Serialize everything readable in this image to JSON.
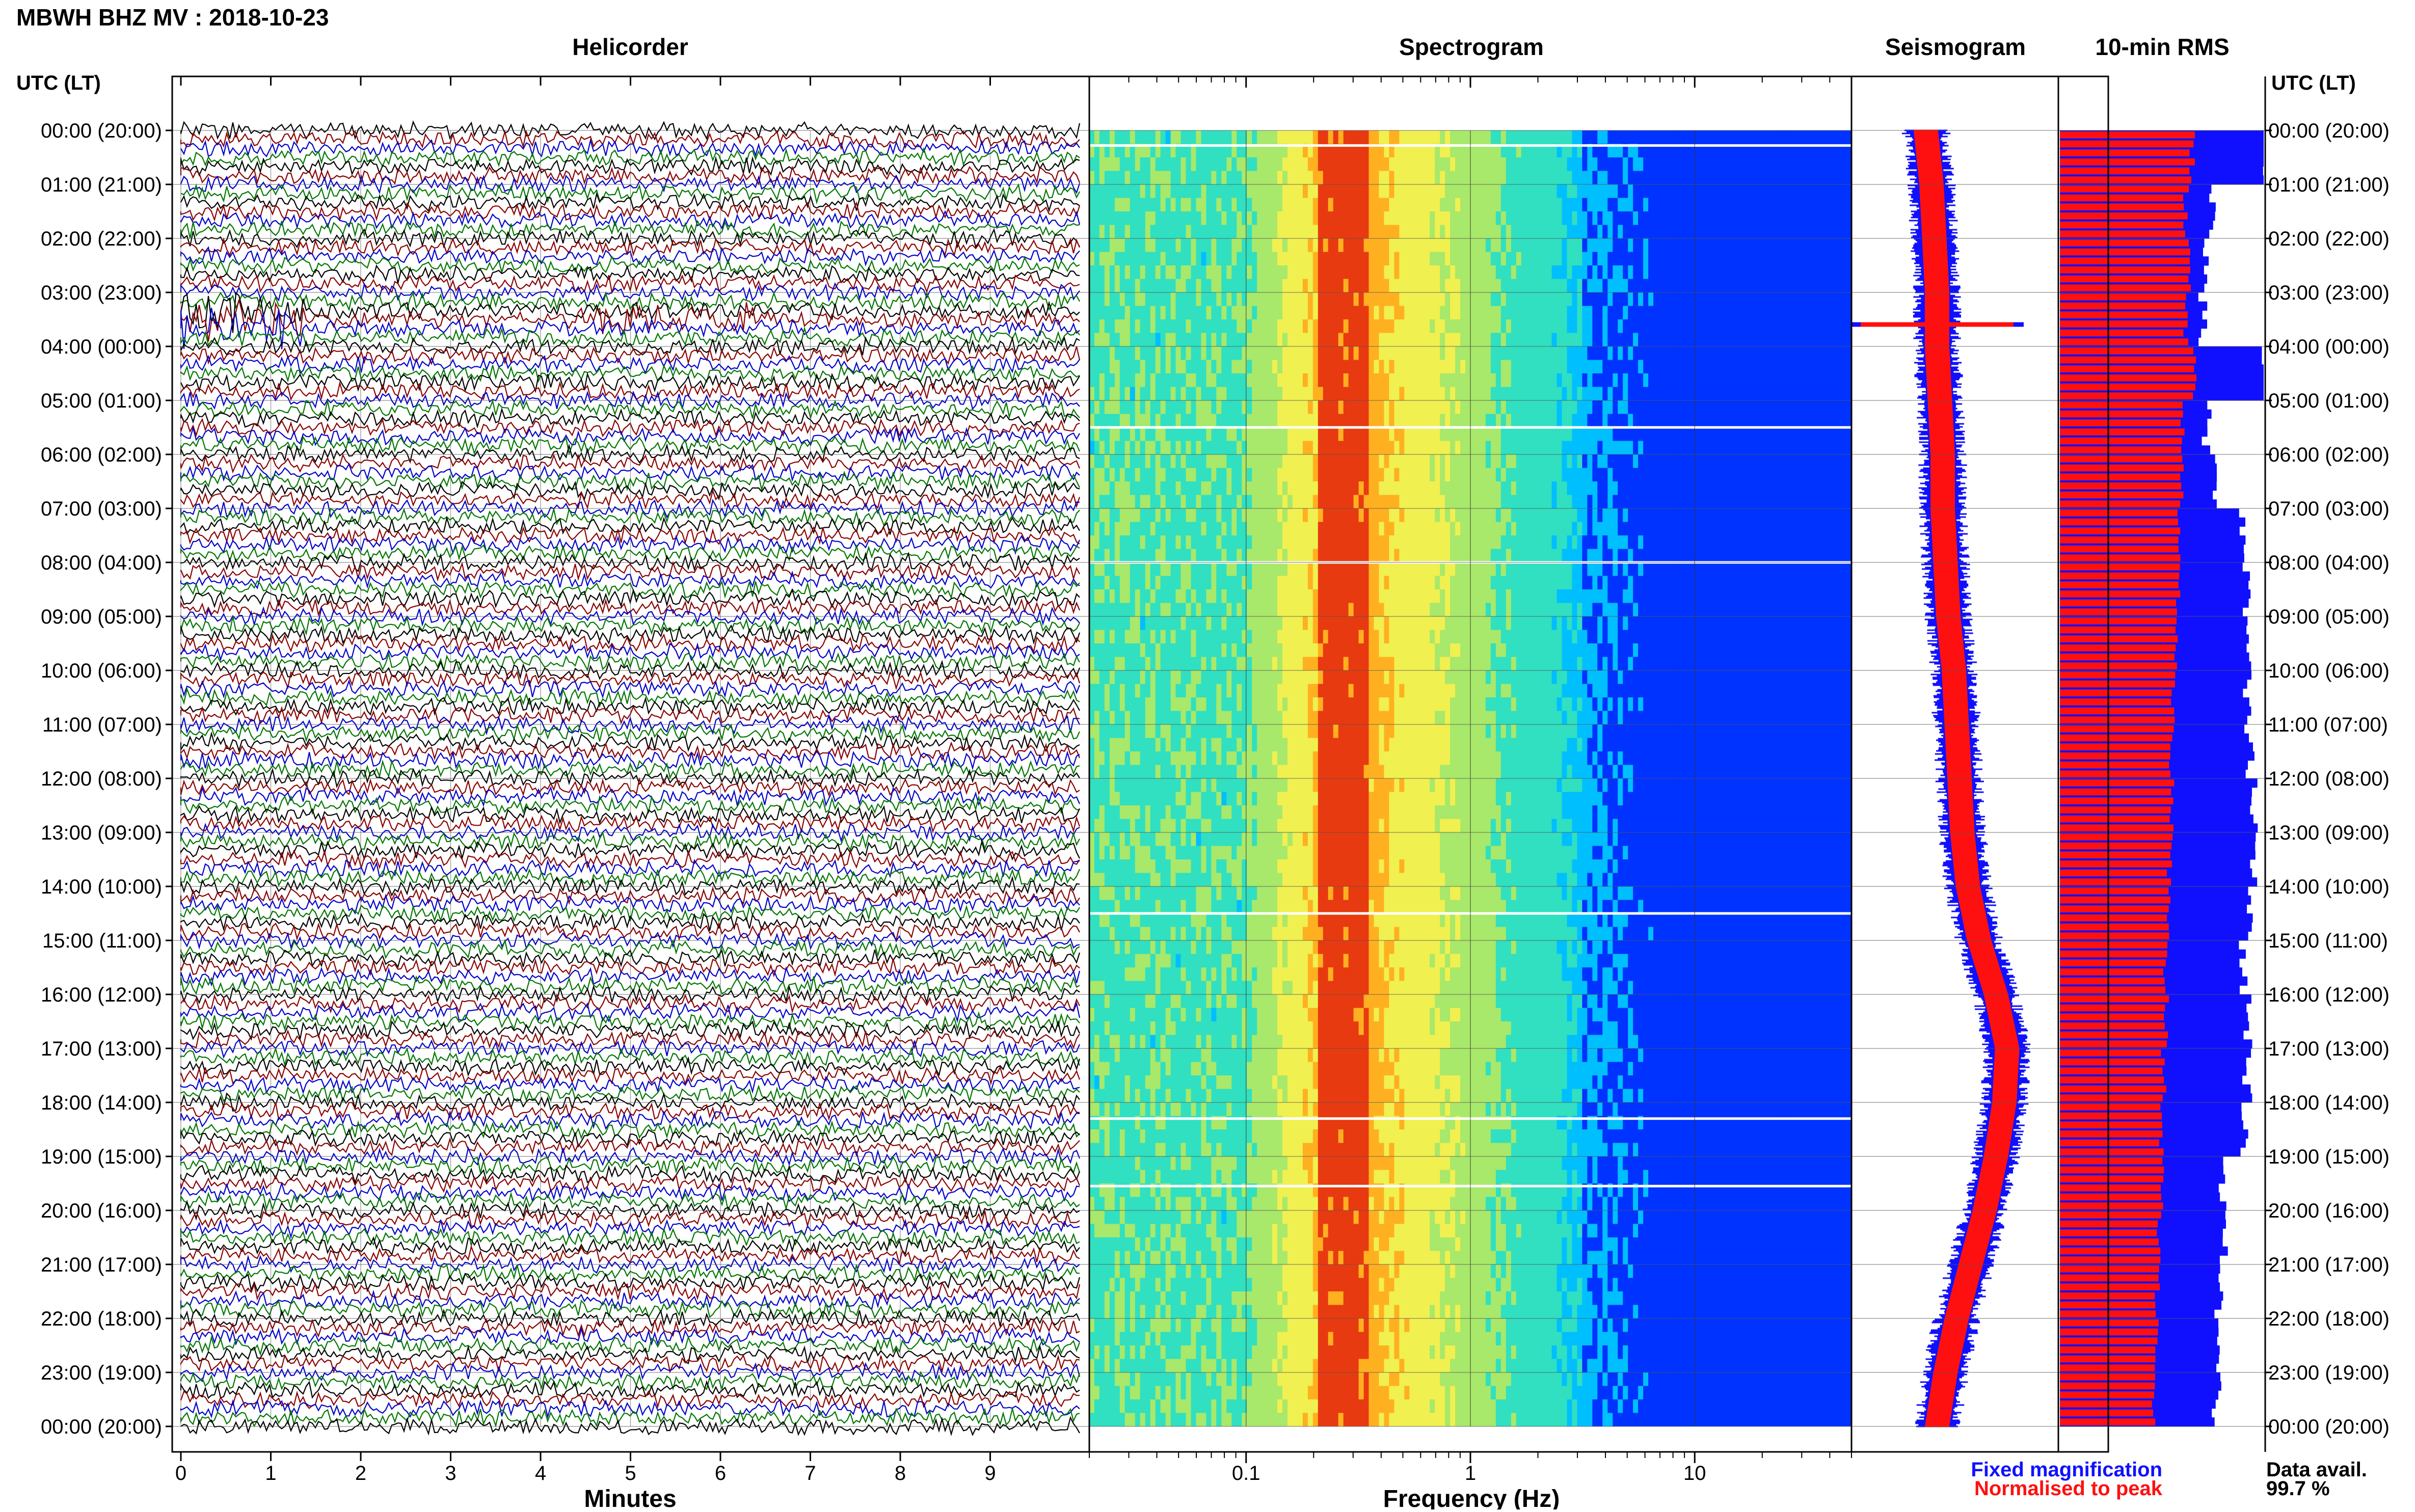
{
  "page": {
    "title": "MBWH BHZ MV : 2018-10-23",
    "utc_label_left": "UTC (LT)",
    "utc_label_right": "UTC (LT)"
  },
  "panels": {
    "helicorder": "Helicorder",
    "spectrogram": "Spectrogram",
    "seismogram": "Seismogram",
    "rms": "10-min RMS"
  },
  "legend": {
    "fixed": "Fixed magnification",
    "fixed_color": "#1010ff",
    "normalised": "Normalised to peak",
    "normalised_color": "#ff1010",
    "avail_label": "Data avail.",
    "avail_value": "99.7 %"
  },
  "chart_data": {
    "type": "heatmap",
    "time_labels": [
      "00:00 (20:00)",
      "01:00 (21:00)",
      "02:00 (22:00)",
      "03:00 (23:00)",
      "04:00 (00:00)",
      "05:00 (01:00)",
      "06:00 (02:00)",
      "07:00 (03:00)",
      "08:00 (04:00)",
      "09:00 (05:00)",
      "10:00 (06:00)",
      "11:00 (07:00)",
      "12:00 (08:00)",
      "13:00 (09:00)",
      "14:00 (10:00)",
      "15:00 (11:00)",
      "16:00 (12:00)",
      "17:00 (13:00)",
      "18:00 (14:00)",
      "19:00 (15:00)",
      "20:00 (16:00)",
      "21:00 (17:00)",
      "22:00 (18:00)",
      "23:00 (19:00)",
      "00:00 (20:00)"
    ],
    "helicorder": {
      "xlabel": "Minutes",
      "xticks": [
        "0",
        "1",
        "2",
        "3",
        "4",
        "5",
        "6",
        "7",
        "8",
        "9"
      ],
      "xlim": [
        0,
        10
      ],
      "trace_colors": [
        "#000000",
        "#8b0000",
        "#0000cc",
        "#007700"
      ]
    },
    "spectrogram": {
      "xlabel": "Frequency (Hz)",
      "xticks": [
        "0.1",
        "1",
        "10"
      ],
      "log_x": true,
      "xlim": [
        0.02,
        50
      ],
      "peak_band_hz": [
        0.2,
        0.35
      ],
      "rolloff_hz": 3
    },
    "seismogram": {
      "center_offset_by_hour": [
        0.0,
        0.1,
        0.15,
        0.2,
        0.2,
        0.25,
        0.3,
        0.3,
        0.35,
        0.4,
        0.5,
        0.55,
        0.6,
        0.65,
        0.75,
        0.95,
        1.25,
        1.45,
        1.4,
        1.25,
        1.05,
        0.8,
        0.55,
        0.35,
        0.2
      ],
      "event_hour": 3.6
    },
    "rms": {
      "red_level_by_hour": [
        0.65,
        0.62,
        0.63,
        0.62,
        0.66,
        0.6,
        0.6,
        0.58,
        0.58,
        0.57,
        0.56,
        0.55,
        0.55,
        0.54,
        0.54,
        0.52,
        0.52,
        0.51,
        0.5,
        0.5,
        0.49,
        0.48,
        0.47,
        0.46,
        0.46
      ],
      "blue_level_by_hour": [
        1.0,
        0.75,
        0.72,
        0.7,
        1.0,
        0.72,
        0.75,
        0.9,
        0.92,
        0.93,
        0.92,
        0.93,
        0.95,
        0.95,
        0.93,
        0.9,
        0.92,
        0.92,
        0.9,
        0.8,
        0.8,
        0.78,
        0.78,
        0.77,
        0.74
      ],
      "red_color": "#ff1010",
      "blue_color": "#1010ff"
    }
  }
}
